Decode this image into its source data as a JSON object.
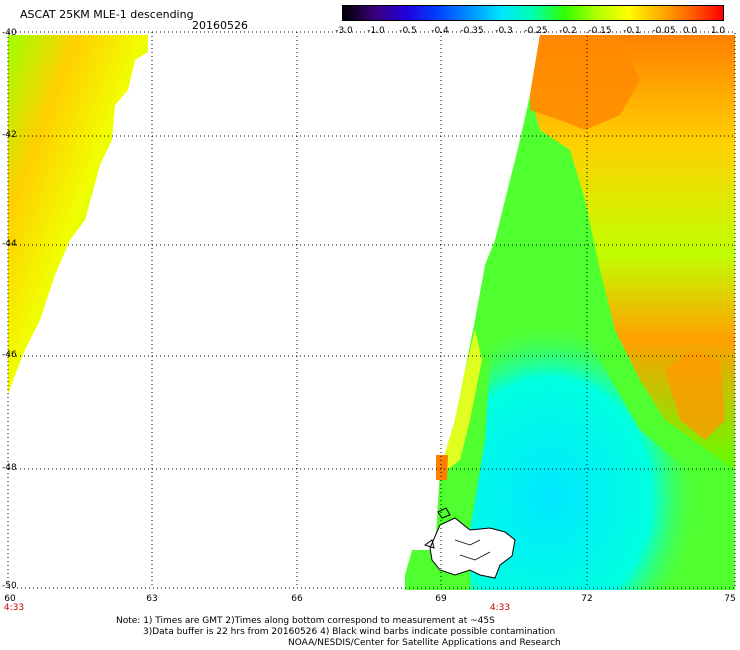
{
  "header": {
    "title": "ASCAT 25KM MLE-1 descending",
    "date": "20160526"
  },
  "colorbar": {
    "labels": [
      "-3.0",
      "-1.0",
      "-0.5",
      "-0.4",
      "-0.35",
      "-0.3",
      "-0.25",
      "-0.2",
      "-0.15",
      "-0.1",
      "-0.05",
      "0.0",
      "1.0"
    ],
    "colors": [
      "#000000",
      "#3a007a",
      "#2200dd",
      "#0040ff",
      "#0090ff",
      "#00e5ff",
      "#00ffb0",
      "#30ff00",
      "#b0ff00",
      "#ffff00",
      "#ffb000",
      "#ff6000",
      "#ff0000"
    ]
  },
  "map": {
    "lat_labels": [
      "-40",
      "-42",
      "-44",
      "-46",
      "-48",
      "-50"
    ],
    "lon_labels": [
      "60",
      "63",
      "66",
      "69",
      "72",
      "75"
    ],
    "time_labels": [
      "4:33",
      "4:33"
    ],
    "land_color": "#ffffff",
    "coast_color": "#000000"
  },
  "notes": {
    "line1": "Note: 1) Times are GMT 2)Times along bottom correspond to measurement at ~45S",
    "line2": "3)Data buffer is 22 hrs from 20160526 4) Black wind barbs indicate possible contamination",
    "line3": "NOAA/NESDIS/Center for Satellite Applications and Research"
  }
}
